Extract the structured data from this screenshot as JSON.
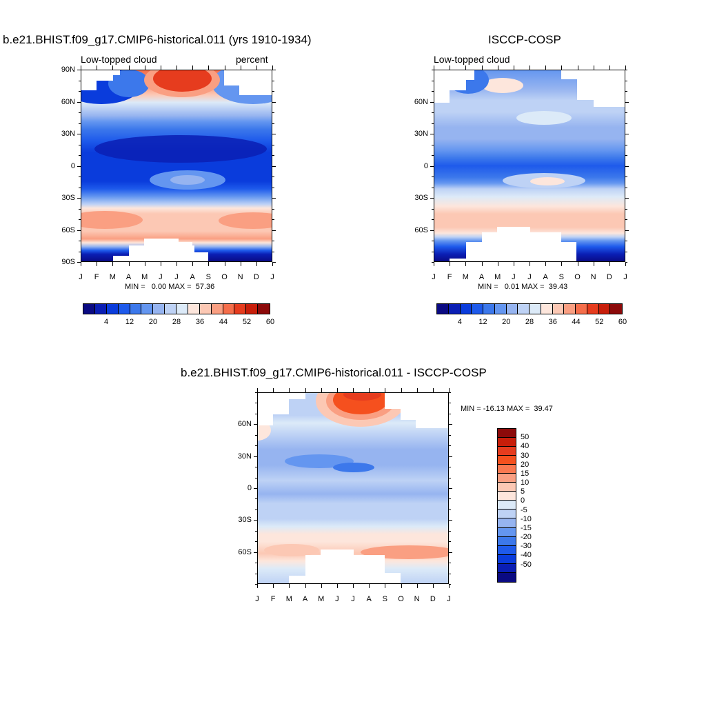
{
  "chart_data": [
    {
      "type": "heatmap",
      "title": "b.e21.BHIST.f09_g17.CMIP6-historical.011 (yrs 1910-1934)",
      "left_label": "Low-topped cloud",
      "right_label": "percent",
      "x_ticks": [
        "J",
        "F",
        "M",
        "A",
        "M",
        "J",
        "J",
        "A",
        "S",
        "O",
        "N",
        "D",
        "J"
      ],
      "y_ticks": [
        "90N",
        "60N",
        "30N",
        "0",
        "30S",
        "60S",
        "90S"
      ],
      "min_max_text": "MIN =   0.00 MAX =  57.36",
      "min": 0.0,
      "max": 57.36,
      "colorbar": {
        "levels": [
          4,
          8,
          12,
          16,
          20,
          24,
          28,
          32,
          36,
          40,
          44,
          48,
          52,
          56,
          60
        ],
        "labels": [
          "4",
          "12",
          "20",
          "28",
          "36",
          "44",
          "52",
          "60"
        ],
        "colors": [
          "#0a0a82",
          "#0a1eb4",
          "#0a3cdc",
          "#1e5aeb",
          "#3c78eb",
          "#6496f0",
          "#96b4f0",
          "#bed2f5",
          "#dceaf8",
          "#fde6dc",
          "#fcc8b4",
          "#fa9f82",
          "#f56e4b",
          "#e63c1e",
          "#c81e0a",
          "#8c0a0a"
        ]
      },
      "bands": [
        {
          "lat": "90N-72N",
          "level": "high (36-60), peak Jun-Aug"
        },
        {
          "lat": "60N-45N",
          "level": "12-28"
        },
        {
          "lat": "30N-30S",
          "level": "4-16"
        },
        {
          "lat": "35S-65S",
          "level": "36-44"
        },
        {
          "lat": "70S-90S",
          "level": "4-8"
        }
      ]
    },
    {
      "type": "heatmap",
      "title": "ISCCP-COSP",
      "left_label": "Low-topped cloud",
      "right_label": "",
      "x_ticks": [
        "J",
        "F",
        "M",
        "A",
        "M",
        "J",
        "J",
        "A",
        "S",
        "O",
        "N",
        "D",
        "J"
      ],
      "y_ticks": [
        "60N",
        "30N",
        "0",
        "30S",
        "60S"
      ],
      "min_max_text": "MIN =   0.01 MAX =  39.43",
      "min": 0.01,
      "max": 39.43,
      "colorbar": {
        "labels": [
          "4",
          "12",
          "20",
          "28",
          "36",
          "44",
          "52",
          "60"
        ],
        "colors": [
          "#0a0a82",
          "#0a1eb4",
          "#0a3cdc",
          "#1e5aeb",
          "#3c78eb",
          "#6496f0",
          "#96b4f0",
          "#bed2f5",
          "#dceaf8",
          "#fde6dc",
          "#fcc8b4",
          "#fa9f82",
          "#f56e4b",
          "#e63c1e",
          "#c81e0a",
          "#8c0a0a"
        ]
      }
    },
    {
      "type": "heatmap",
      "title": "b.e21.BHIST.f09_g17.CMIP6-historical.011 - ISCCP-COSP",
      "x_ticks": [
        "J",
        "F",
        "M",
        "A",
        "M",
        "J",
        "J",
        "A",
        "S",
        "O",
        "N",
        "D",
        "J"
      ],
      "y_ticks": [
        "60N",
        "30N",
        "0",
        "30S",
        "60S"
      ],
      "min_max_text": "MIN = -16.13 MAX =  39.47",
      "min": -16.13,
      "max": 39.47,
      "colorbar": {
        "labels": [
          "50",
          "40",
          "30",
          "20",
          "15",
          "10",
          "5",
          "0",
          "-5",
          "-10",
          "-15",
          "-20",
          "-30",
          "-40",
          "-50"
        ],
        "colors": [
          "#8c0a0a",
          "#c81e0a",
          "#e63c1e",
          "#f5501e",
          "#fa7850",
          "#fa9f82",
          "#fcc8b4",
          "#fde6dc",
          "#dceaf8",
          "#bed2f5",
          "#96b4f0",
          "#6496f0",
          "#3c78eb",
          "#1e5aeb",
          "#0a3cdc",
          "#0a1eb4",
          "#0a0a82"
        ]
      }
    }
  ]
}
